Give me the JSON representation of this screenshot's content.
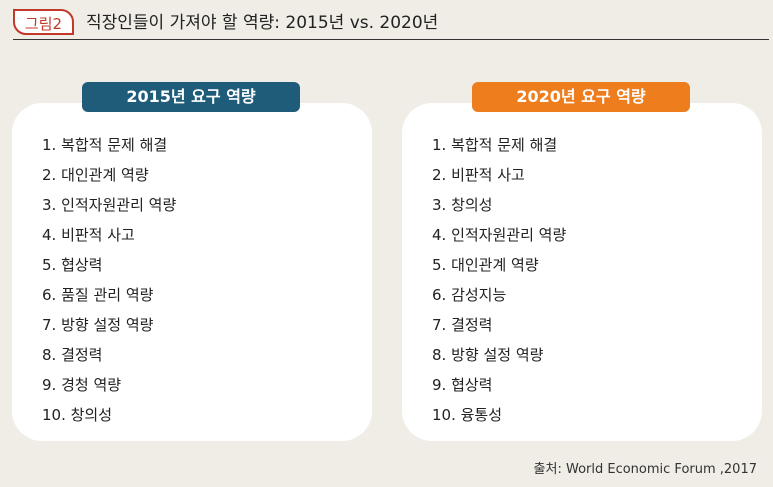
{
  "figure": {
    "label": "그림2",
    "title": "직장인들이 가져야 할 역량: 2015년  vs. 2020년"
  },
  "panels": [
    {
      "header": "2015년 요구 역량",
      "header_color": "#1e5c7a",
      "items": [
        "1. 복합적 문제 해결",
        "2. 대인관계 역량",
        "3. 인적자원관리 역량",
        "4. 비판적 사고",
        "5. 협상력",
        "6. 품질 관리 역량",
        "7. 방향 설정 역량",
        "8. 결정력",
        "9. 경청 역량",
        "10. 창의성"
      ]
    },
    {
      "header": "2020년 요구 역량",
      "header_color": "#ee7d1e",
      "items": [
        "1. 복합적 문제 해결",
        "2. 비판적 사고",
        "3. 창의성",
        "4. 인적자원관리 역량",
        "5. 대인관계 역량",
        "6. 감성지능",
        "7. 결정력",
        "8. 방향 설정 역량",
        "9. 협상력",
        "10. 융통성"
      ]
    }
  ],
  "source": "출처: World Economic Forum ,2017"
}
